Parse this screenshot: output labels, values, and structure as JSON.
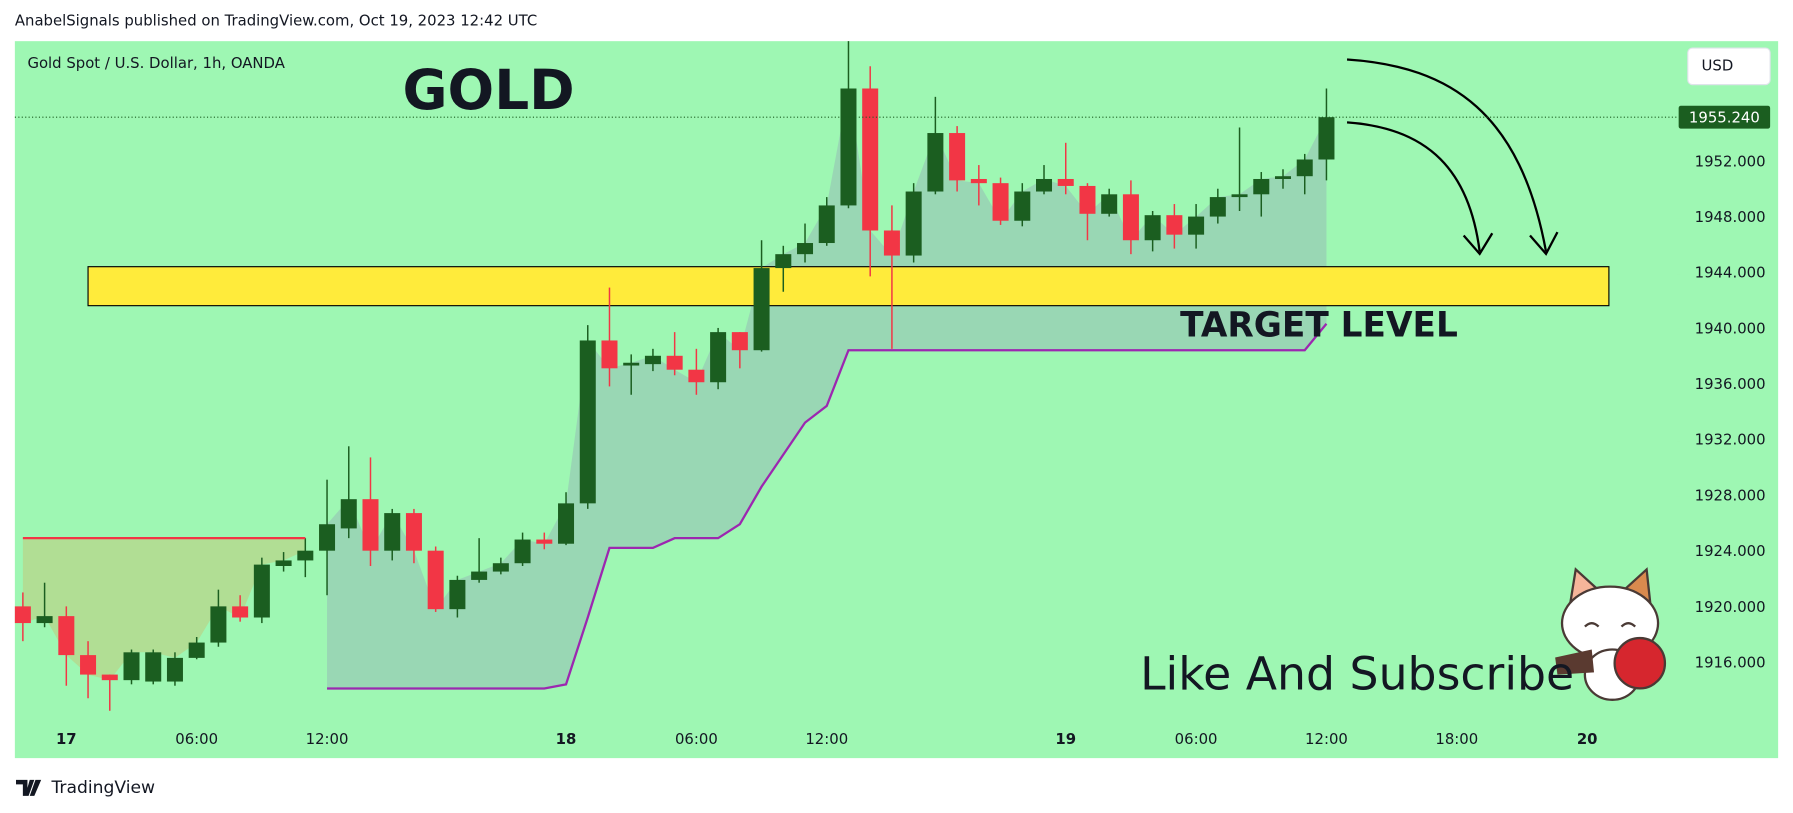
{
  "header": "AnabelSignals published on TradingView.com, Oct 19, 2023 12:42 UTC",
  "footer_brand": "TradingView",
  "chart_data": {
    "type": "candlestick",
    "title": "Gold Spot / U.S. Dollar, 1h, OANDA",
    "currency": "USD",
    "categories": [
      null,
      null,
      "17",
      null,
      null,
      null,
      null,
      null,
      "06:00",
      null,
      null,
      null,
      null,
      null,
      "12:00",
      null,
      null,
      null,
      null,
      null,
      null,
      null,
      null,
      null,
      null,
      "18",
      null,
      null,
      null,
      null,
      null,
      "06:00",
      null,
      null,
      null,
      null,
      null,
      "12:00",
      null,
      null,
      null,
      null,
      null,
      null,
      null,
      null,
      null,
      null,
      "19",
      null,
      null,
      null,
      null,
      null,
      "06:00",
      null,
      null,
      null,
      null,
      null,
      "12:00",
      null,
      null,
      null,
      null,
      null,
      "18:00",
      null,
      null,
      null,
      null,
      null,
      "20"
    ],
    "open": [
      1920.1,
      1918.9,
      1919.4,
      1916.6,
      1915.2,
      1914.8,
      1914.7,
      1914.7,
      1916.4,
      1917.5,
      1920.1,
      1919.3,
      1923.0,
      1923.4,
      1924.1,
      1925.7,
      1927.8,
      1924.1,
      1926.8,
      1924.1,
      1919.9,
      1922.0,
      1922.6,
      1923.2,
      1924.9,
      1924.6,
      1927.5,
      1939.2,
      1937.4,
      1937.5,
      1938.1,
      1937.1,
      1936.2,
      1939.8,
      1938.5,
      1944.4,
      1945.4,
      1946.2,
      1948.9,
      1957.3,
      1947.1,
      1945.3,
      1949.9,
      1954.1,
      1950.8,
      1950.5,
      1947.8,
      1949.9,
      1950.8,
      1950.3,
      1948.3,
      1949.7,
      1946.4,
      1948.2,
      1946.8,
      1948.1,
      1949.5,
      1949.7,
      1950.8,
      1951.0,
      1952.2,
      null,
      null,
      null,
      null,
      null,
      null,
      null,
      null,
      null,
      null,
      null,
      null
    ],
    "high": [
      1921.1,
      1921.8,
      1920.1,
      1917.6,
      1915.2,
      1917.0,
      1917.0,
      1916.8,
      1917.9,
      1921.3,
      1920.9,
      1923.6,
      1924.0,
      1925.0,
      1929.2,
      1931.6,
      1930.8,
      1927.1,
      1927.1,
      1924.4,
      1922.3,
      1925.0,
      1923.6,
      1925.4,
      1925.4,
      1928.3,
      1940.3,
      1943.0,
      1938.2,
      1938.6,
      1939.8,
      1938.6,
      1940.1,
      1939.8,
      1946.4,
      1946.0,
      1947.6,
      1949.5,
      1960.7,
      1958.9,
      1948.9,
      1950.5,
      1956.7,
      1954.6,
      1951.8,
      1950.9,
      1950.5,
      1951.8,
      1953.4,
      1950.5,
      1950.1,
      1950.7,
      1948.5,
      1949.0,
      1949.0,
      1950.1,
      1954.5,
      1951.3,
      1951.5,
      1952.6,
      1957.3,
      null,
      null,
      null,
      null,
      null,
      null,
      null,
      null,
      null,
      null,
      null,
      null
    ],
    "low": [
      1917.6,
      1918.6,
      1914.4,
      1913.5,
      1912.6,
      1914.5,
      1914.5,
      1914.4,
      1916.3,
      1917.2,
      1919.0,
      1918.9,
      1922.6,
      1922.2,
      1920.9,
      1925.0,
      1923.0,
      1923.4,
      1923.2,
      1919.7,
      1919.3,
      1921.8,
      1922.4,
      1923.0,
      1924.2,
      1924.5,
      1927.1,
      1935.9,
      1935.3,
      1937.0,
      1936.7,
      1935.3,
      1935.7,
      1937.2,
      1938.4,
      1942.7,
      1944.8,
      1946.0,
      1948.7,
      1943.8,
      1938.6,
      1944.8,
      1949.7,
      1949.9,
      1948.9,
      1947.5,
      1947.4,
      1949.7,
      1949.7,
      1946.4,
      1948.1,
      1945.4,
      1945.6,
      1945.8,
      1945.8,
      1947.6,
      1948.5,
      1948.1,
      1950.1,
      1949.7,
      1950.7,
      null,
      null,
      null,
      null,
      null,
      null,
      null,
      null,
      null,
      null,
      null,
      null
    ],
    "close": [
      1918.9,
      1919.4,
      1916.6,
      1915.2,
      1914.8,
      1916.8,
      1916.8,
      1916.4,
      1917.5,
      1920.1,
      1919.3,
      1923.1,
      1923.4,
      1924.1,
      1926.0,
      1927.8,
      1924.1,
      1926.8,
      1924.1,
      1919.9,
      1922.0,
      1922.6,
      1923.2,
      1924.9,
      1924.6,
      1927.5,
      1939.2,
      1937.2,
      1937.6,
      1938.1,
      1937.1,
      1936.2,
      1939.8,
      1938.5,
      1944.4,
      1945.4,
      1946.2,
      1948.9,
      1957.3,
      1947.1,
      1945.3,
      1949.9,
      1954.1,
      1950.7,
      1950.5,
      1947.8,
      1949.9,
      1950.8,
      1950.3,
      1948.3,
      1949.7,
      1946.4,
      1948.2,
      1946.8,
      1948.1,
      1949.5,
      1949.7,
      1950.8,
      1951.0,
      1952.2,
      1955.24,
      null,
      null,
      null,
      null,
      null,
      null,
      null,
      null,
      null,
      null,
      null,
      null
    ],
    "up_color": "#1b5e20",
    "down_color": "#f23645",
    "ylim": [
      1909.2,
      1960.7
    ],
    "yticks": [
      {
        "value": 1916,
        "label": "1916.000"
      },
      {
        "value": 1920,
        "label": "1920.000"
      },
      {
        "value": 1924,
        "label": "1924.000"
      },
      {
        "value": 1928,
        "label": "1928.000"
      },
      {
        "value": 1932,
        "label": "1932.000"
      },
      {
        "value": 1936,
        "label": "1936.000"
      },
      {
        "value": 1940,
        "label": "1940.000"
      },
      {
        "value": 1944,
        "label": "1944.000"
      },
      {
        "value": 1948,
        "label": "1948.000"
      },
      {
        "value": 1952,
        "label": "1952.000"
      }
    ],
    "last_price": {
      "value": 1955.24,
      "label": "1955.240"
    },
    "zone": {
      "from": 1941.7,
      "to": 1944.5,
      "color": "#ffeb3b"
    },
    "annotations": [
      "GOLD",
      "TARGET LEVEL",
      "Like And Subscribe"
    ],
    "trails": [
      {
        "color": "#f23645",
        "values": [
          1925.0,
          1925.0,
          1925.0,
          1925.0,
          1925.0,
          1925.0,
          1925.0,
          1925.0,
          1925.0,
          1925.0,
          1925.0,
          1925.0,
          1925.0,
          1925.0,
          null,
          null,
          null,
          null,
          null,
          null,
          null,
          null,
          null,
          null,
          null,
          null,
          null,
          null,
          null,
          null,
          null,
          null,
          null,
          null,
          null,
          null,
          null,
          null,
          null,
          null,
          null,
          null,
          null,
          null,
          null,
          null,
          null,
          null,
          null,
          null,
          null,
          null,
          null,
          null,
          null,
          null,
          null,
          null,
          null,
          null,
          null,
          null,
          null,
          null,
          null,
          null,
          null,
          null,
          null,
          null,
          null,
          null,
          null
        ]
      },
      {
        "color": "#9c27b0",
        "values": [
          null,
          null,
          null,
          null,
          null,
          null,
          null,
          null,
          null,
          null,
          null,
          null,
          null,
          null,
          1914.2,
          1914.2,
          1914.2,
          1914.2,
          1914.2,
          1914.2,
          1914.2,
          1914.2,
          1914.2,
          1914.2,
          1914.2,
          1914.5,
          1919.3,
          1924.3,
          1924.3,
          1924.3,
          1925.0,
          1925.0,
          1925.0,
          1926.0,
          1928.7,
          1931.0,
          1933.3,
          1934.5,
          1938.5,
          1938.5,
          1938.5,
          1938.5,
          1938.5,
          1938.5,
          1938.5,
          1938.5,
          1938.5,
          1938.5,
          1938.5,
          1938.5,
          1938.5,
          1938.5,
          1938.5,
          1938.5,
          1938.5,
          1938.5,
          1938.5,
          1938.5,
          1938.5,
          1938.5,
          1940.4,
          null,
          null,
          null,
          null,
          null,
          null,
          null,
          null,
          null,
          null,
          null,
          null
        ]
      }
    ]
  }
}
